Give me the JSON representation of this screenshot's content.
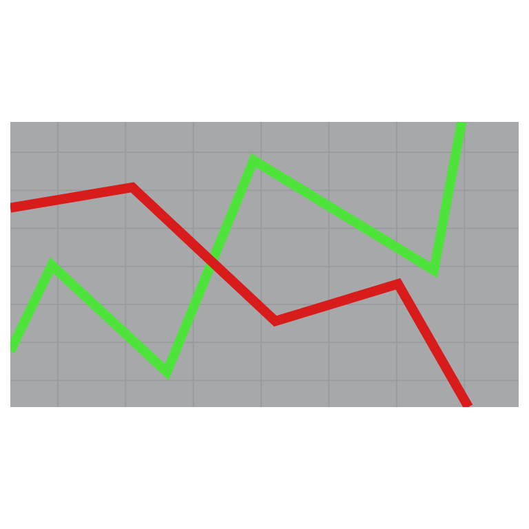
{
  "chart_data": {
    "type": "line",
    "xlim": [
      0,
      7.5
    ],
    "ylim": [
      0,
      7.5
    ],
    "xticks": [
      0.7,
      1.7,
      2.7,
      3.7,
      4.7,
      5.7,
      6.7
    ],
    "yticks": [
      0.7,
      1.7,
      2.7,
      3.7,
      4.7,
      5.7,
      6.7
    ],
    "grid": true,
    "background": "#a7a8aa",
    "grid_color": "#9a9b9d",
    "series": [
      {
        "color": "#4de33a",
        "x": [
          0,
          0.61,
          2.31,
          3.59,
          6.25,
          6.66
        ],
        "values": [
          1.47,
          3.73,
          0.92,
          6.49,
          3.6,
          7.5
        ]
      },
      {
        "color": "#d81c1c",
        "x": [
          0,
          1.8,
          3.91,
          5.72,
          6.76
        ],
        "values": [
          5.24,
          5.78,
          2.26,
          3.24,
          0
        ]
      }
    ]
  }
}
